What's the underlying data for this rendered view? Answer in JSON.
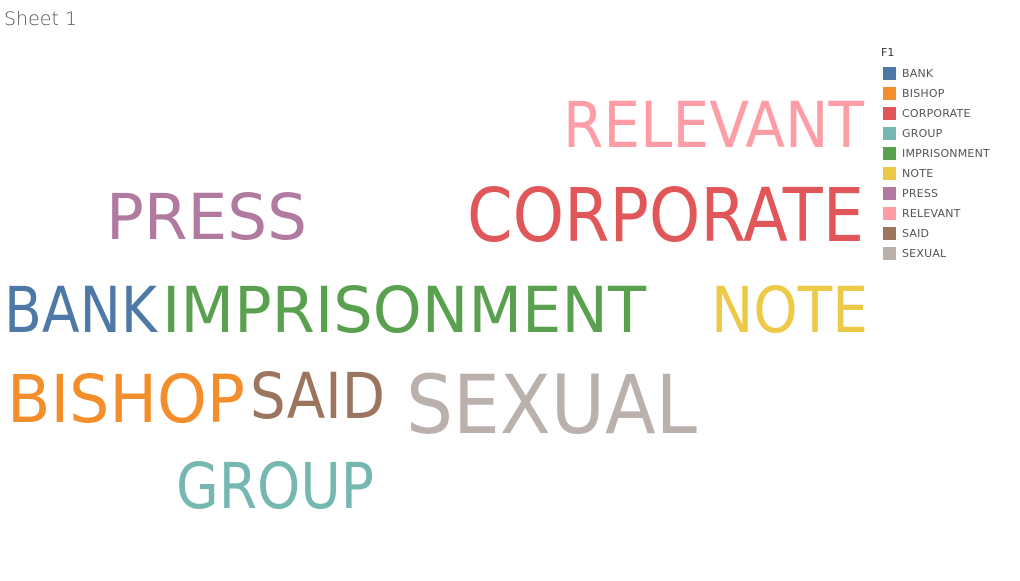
{
  "sheet": {
    "title": "Sheet 1"
  },
  "chart_data": {
    "type": "word-cloud",
    "legend": {
      "title": "F1",
      "position": "top-right",
      "items": [
        {
          "label": "BANK",
          "color": "#4e79a7"
        },
        {
          "label": "BISHOP",
          "color": "#f28e2b"
        },
        {
          "label": "CORPORATE",
          "color": "#e15759"
        },
        {
          "label": "GROUP",
          "color": "#76b7b2"
        },
        {
          "label": "IMPRISONMENT",
          "color": "#59a14f"
        },
        {
          "label": "NOTE",
          "color": "#edc948"
        },
        {
          "label": "PRESS",
          "color": "#b07aa1"
        },
        {
          "label": "RELEVANT",
          "color": "#ff9da7"
        },
        {
          "label": "SAID",
          "color": "#9c755f"
        },
        {
          "label": "SEXUAL",
          "color": "#bab0ac"
        }
      ]
    },
    "words": [
      {
        "text": "RELEVANT",
        "color": "#ff9da7"
      },
      {
        "text": "PRESS",
        "color": "#b07aa1"
      },
      {
        "text": "CORPORATE",
        "color": "#e15759"
      },
      {
        "text": "BANK",
        "color": "#4e79a7"
      },
      {
        "text": "IMPRISONMENT",
        "color": "#59a14f"
      },
      {
        "text": "NOTE",
        "color": "#edc948"
      },
      {
        "text": "BISHOP",
        "color": "#f28e2b"
      },
      {
        "text": "SAID",
        "color": "#9c755f"
      },
      {
        "text": "SEXUAL",
        "color": "#bab0ac"
      },
      {
        "text": "GROUP",
        "color": "#76b7b2"
      }
    ]
  }
}
